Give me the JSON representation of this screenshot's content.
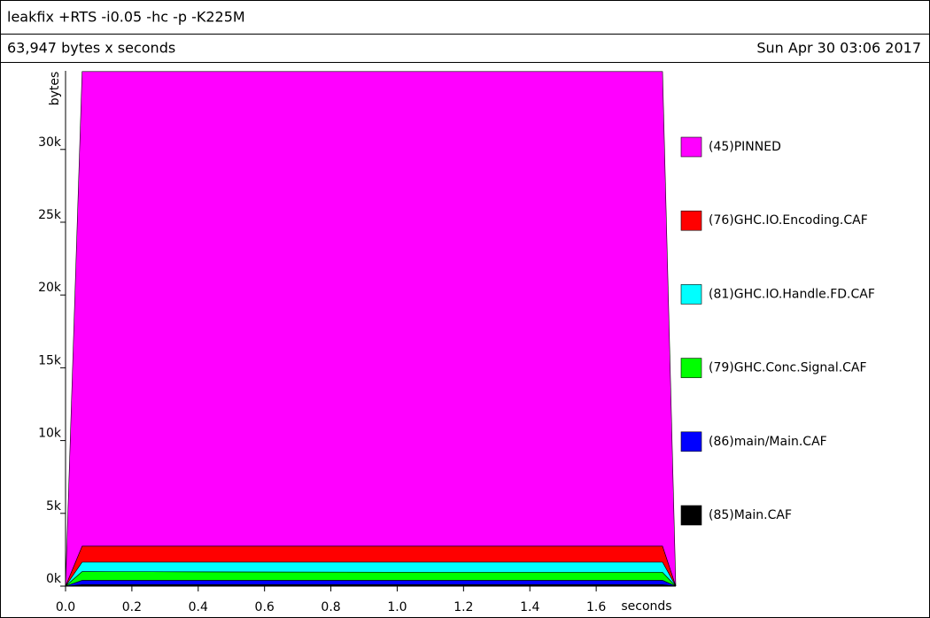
{
  "header": {
    "title": "leakfix +RTS -i0.05 -hc -p -K225M",
    "total": "63,947 bytes x seconds",
    "date": "Sun Apr 30 03:06 2017"
  },
  "chart_data": {
    "type": "stacked-area",
    "y_label": "bytes",
    "x_label": "seconds",
    "x": [
      0,
      0.05,
      1.12,
      1.8,
      1.84
    ],
    "xlim": [
      0,
      1.84
    ],
    "xticks": [
      {
        "value": 0,
        "label": "0.0"
      },
      0.2,
      0.4,
      0.6,
      0.8,
      {
        "value": 1,
        "label": "1.0"
      },
      1.2,
      1.4,
      1.6
    ],
    "ylim": [
      0,
      35400
    ],
    "yticks": [
      {
        "value": 0,
        "label": "0k"
      },
      {
        "value": 5000,
        "label": "5k"
      },
      {
        "value": 10000,
        "label": "10k"
      },
      {
        "value": 15000,
        "label": "15k"
      },
      {
        "value": 20000,
        "label": "20k"
      },
      {
        "value": 25000,
        "label": "25k"
      },
      {
        "value": 30000,
        "label": "30k"
      }
    ],
    "series": [
      {
        "name": "(85)Main.CAF",
        "color": "#000000",
        "values": [
          0,
          100,
          100,
          100,
          0
        ]
      },
      {
        "name": "(86)main/Main.CAF",
        "color": "#0000ff",
        "values": [
          0,
          300,
          300,
          300,
          0
        ]
      },
      {
        "name": "(79)GHC.Conc.Signal.CAF",
        "color": "#00ff00",
        "values": [
          0,
          600,
          550,
          550,
          0
        ]
      },
      {
        "name": "(81)GHC.IO.Handle.FD.CAF",
        "color": "#00ffff",
        "values": [
          0,
          650,
          700,
          700,
          0
        ]
      },
      {
        "name": "(76)GHC.IO.Encoding.CAF",
        "color": "#ff0000",
        "values": [
          0,
          1100,
          1100,
          1100,
          0
        ]
      },
      {
        "name": "(45)PINNED",
        "color": "#ff00ff",
        "values": [
          0,
          32600,
          32600,
          32600,
          0
        ]
      }
    ]
  }
}
